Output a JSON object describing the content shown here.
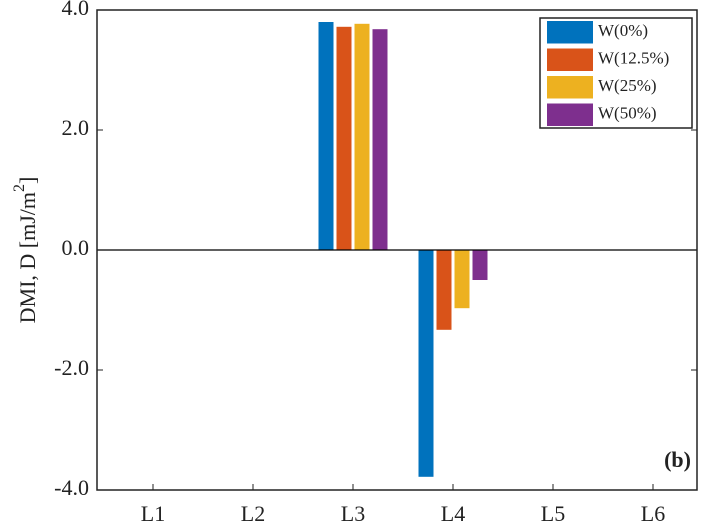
{
  "chart_data": {
    "type": "bar",
    "ylabel": {
      "text": "DMI, D [mJ/m",
      "superscript": "2",
      "suffix": "]"
    },
    "annotation": "(b)",
    "categories": [
      "L1",
      "L2",
      "L3",
      "L4",
      "L5",
      "L6"
    ],
    "series": [
      {
        "name": "W(0%)",
        "color": "#0072bd",
        "values": [
          0,
          0,
          3.8,
          -3.78,
          0,
          0
        ]
      },
      {
        "name": "W(12.5%)",
        "color": "#d95319",
        "values": [
          0,
          0,
          3.72,
          -1.33,
          0,
          0
        ]
      },
      {
        "name": "W(25%)",
        "color": "#edb120",
        "values": [
          0,
          0,
          3.77,
          -0.97,
          0,
          0
        ]
      },
      {
        "name": "W(50%)",
        "color": "#7e2f8e",
        "values": [
          0,
          0,
          3.68,
          -0.5,
          0,
          0
        ]
      }
    ],
    "ylim": [
      -4,
      4
    ],
    "yticks": [
      {
        "value": -4,
        "label": "-4.0"
      },
      {
        "value": -2,
        "label": "-2.0"
      },
      {
        "value": 0,
        "label": "0.0"
      },
      {
        "value": 2,
        "label": "2.0"
      },
      {
        "value": 4,
        "label": "4.0"
      }
    ],
    "legend": "upper right"
  }
}
